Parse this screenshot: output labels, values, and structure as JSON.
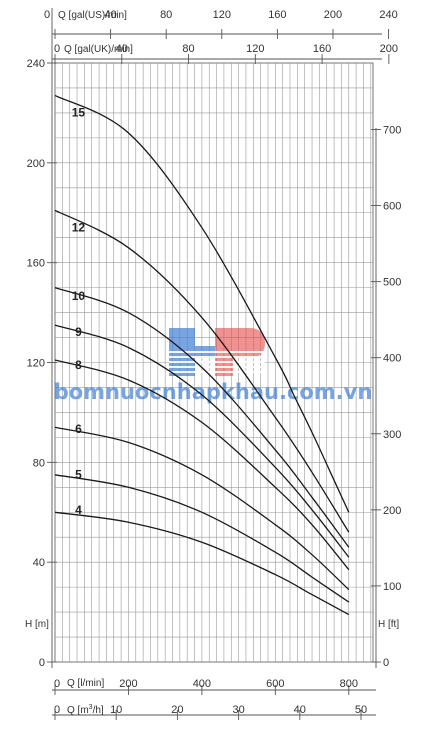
{
  "chart_data": {
    "type": "line",
    "title": "",
    "x_unit_main": "l/min",
    "xlim": [
      0,
      866
    ],
    "ylim": [
      0,
      240
    ],
    "y2lim": [
      0,
      788
    ],
    "series": [
      {
        "name": "15",
        "x": [
          0,
          200,
          400,
          600,
          650,
          700,
          750,
          800
        ],
        "y": [
          227,
          212,
          174,
          122,
          107,
          92,
          76,
          60
        ]
      },
      {
        "name": "12",
        "x": [
          0,
          200,
          400,
          600,
          700,
          800
        ],
        "y": [
          181,
          166,
          138,
          98,
          76,
          52
        ]
      },
      {
        "name": "10",
        "x": [
          0,
          200,
          400,
          600,
          700,
          800
        ],
        "y": [
          150,
          140,
          118,
          85,
          66,
          46
        ]
      },
      {
        "name": "9",
        "x": [
          0,
          200,
          400,
          600,
          700,
          800
        ],
        "y": [
          135,
          126,
          107,
          78,
          61,
          42
        ]
      },
      {
        "name": "8",
        "x": [
          0,
          200,
          400,
          600,
          700,
          800
        ],
        "y": [
          121,
          113,
          96,
          70,
          55,
          37
        ]
      },
      {
        "name": "6",
        "x": [
          0,
          200,
          400,
          600,
          700,
          800
        ],
        "y": [
          94,
          88,
          75,
          55,
          43,
          29
        ]
      },
      {
        "name": "5",
        "x": [
          0,
          200,
          400,
          600,
          700,
          800
        ],
        "y": [
          75,
          70,
          60,
          44,
          34,
          24
        ]
      },
      {
        "name": "4",
        "x": [
          0,
          200,
          400,
          600,
          700,
          800
        ],
        "y": [
          60,
          56,
          48,
          35,
          27,
          19
        ]
      }
    ],
    "label_positions_x": [
      140,
      140,
      140,
      140,
      140,
      140,
      140,
      140
    ],
    "axes": {
      "top_us": {
        "label": "Q [gal(US)/min]",
        "ticks": [
          "0",
          "40",
          "80",
          "120",
          "160",
          "200",
          "240"
        ],
        "max": 240,
        "factor": 3.785
      },
      "top_uk": {
        "label": "Q [gal(UK)/min]",
        "ticks": [
          "0",
          "40",
          "80",
          "120",
          "160",
          "200"
        ],
        "max": 200,
        "factor": 4.546
      },
      "bottom_lmin": {
        "label": "Q [l/min]",
        "ticks": [
          "0",
          "200",
          "400",
          "600",
          "800"
        ],
        "max": 800
      },
      "bottom_m3h": {
        "label_prefix": "Q [m",
        "label_sup": "3",
        "label_suffix": "/h]",
        "ticks": [
          "0",
          "10",
          "20",
          "30",
          "40",
          "50"
        ],
        "max": 50,
        "factor": 16.667
      },
      "left_m": {
        "label": "H [m]",
        "ticks": [
          "0",
          "40",
          "80",
          "120",
          "160",
          "200",
          "240"
        ],
        "max": 240
      },
      "right_ft": {
        "label": "H [ft]",
        "ticks": [
          "0",
          "100",
          "200",
          "300",
          "400",
          "500",
          "600",
          "700"
        ],
        "max": 700,
        "factor": 0.3048
      }
    }
  },
  "watermark": {
    "text": "bomnuocnhapkhau.com.vn",
    "logo": "HP",
    "color_primary": "#3f7fd6",
    "color_secondary": "#e84a4a"
  }
}
